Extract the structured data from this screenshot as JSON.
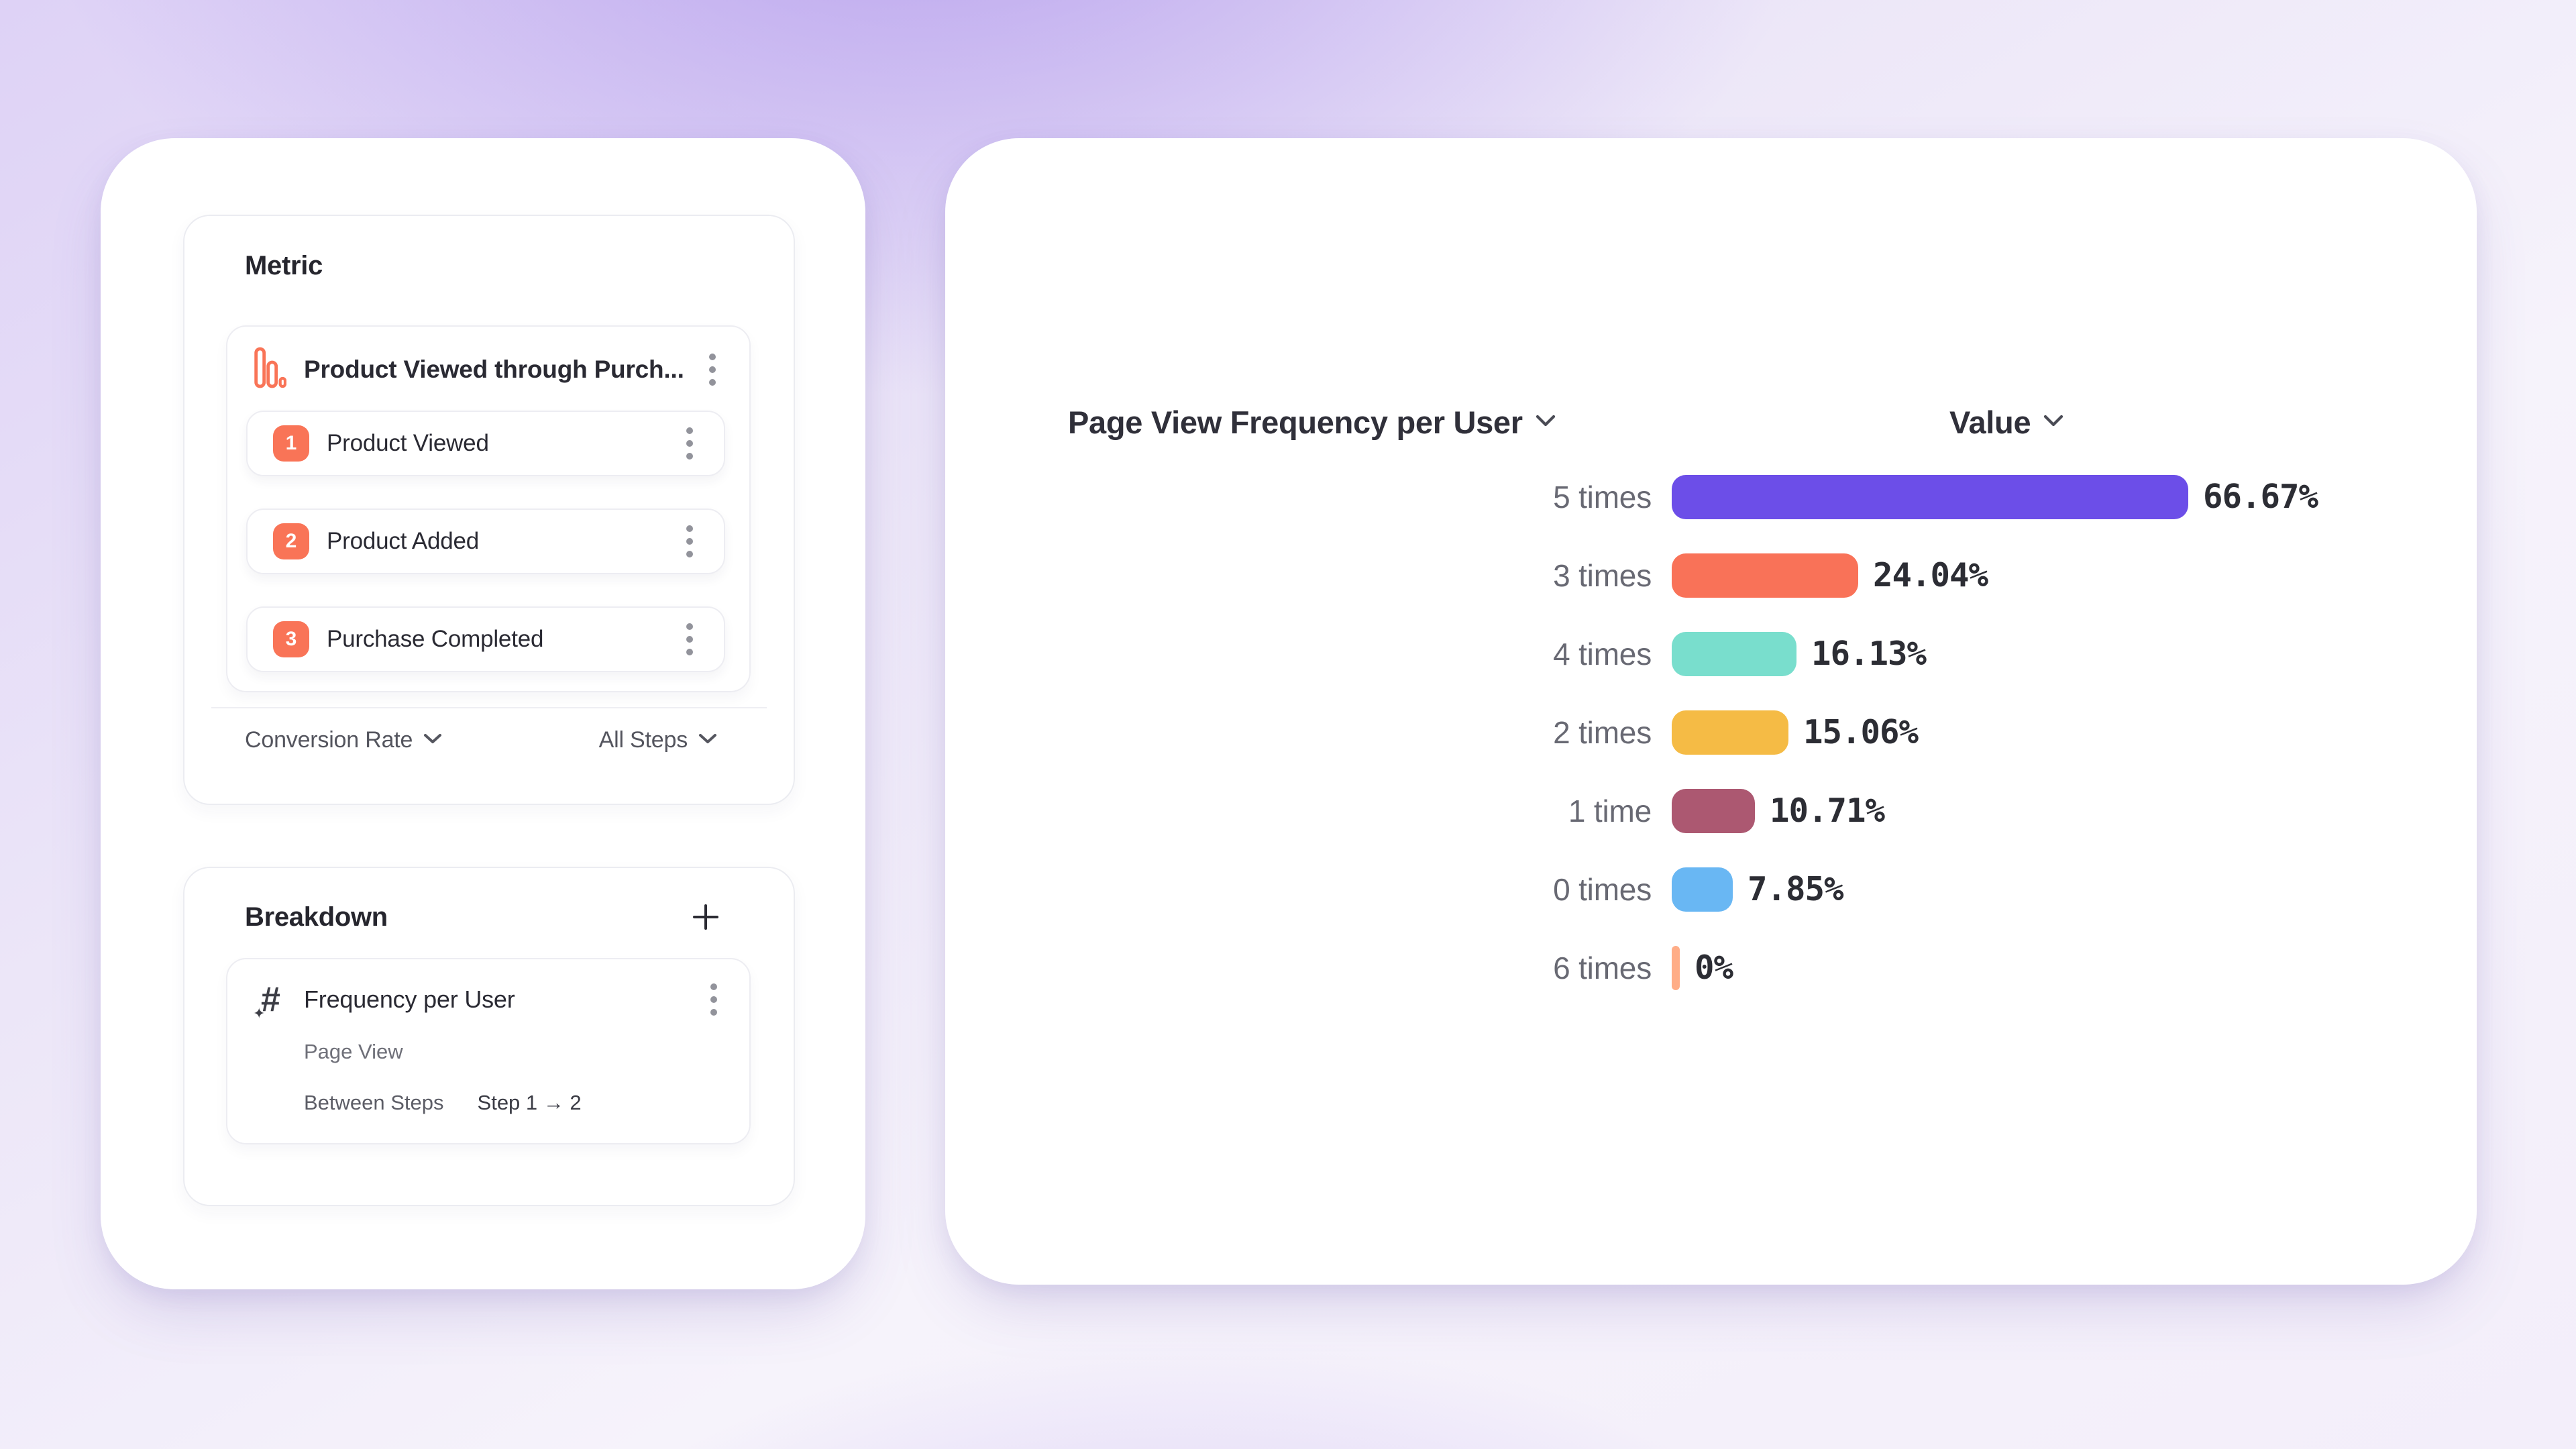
{
  "left_panel": {
    "metric_card": {
      "title": "Metric",
      "funnel": {
        "name": "Product Viewed through Purch...",
        "icon": "funnel-bars-icon",
        "icon_color": "#f97457",
        "steps": [
          {
            "number": "1",
            "label": "Product Viewed"
          },
          {
            "number": "2",
            "label": "Product Added"
          },
          {
            "number": "3",
            "label": "Purchase Completed"
          }
        ],
        "badge_color": "#f97457"
      },
      "footer": {
        "measure_dropdown": "Conversion Rate",
        "steps_dropdown": "All Steps"
      }
    },
    "breakdown_card": {
      "title": "Breakdown",
      "add_button": "plus-icon",
      "item": {
        "icon": "hash-property-icon",
        "name": "Frequency per User",
        "event": "Page View",
        "scope_label": "Between Steps",
        "scope_value": "Step 1 → 2"
      }
    }
  },
  "chart_panel": {
    "series_header": "Page View Frequency per User",
    "value_header": "Value"
  },
  "chart_data": {
    "type": "bar",
    "orientation": "horizontal",
    "title": "Page View Frequency per User",
    "value_axis_label": "Value",
    "categories": [
      "5 times",
      "3 times",
      "4 times",
      "2 times",
      "1 time",
      "0 times",
      "6 times"
    ],
    "values": [
      66.67,
      24.04,
      16.13,
      15.06,
      10.71,
      7.85,
      0
    ],
    "value_labels": [
      "66.67%",
      "24.04%",
      "16.13%",
      "15.06%",
      "10.71%",
      "7.85%",
      "0%"
    ],
    "bar_colors": [
      "#6c4ee8",
      "#f97258",
      "#79decd",
      "#f5bb45",
      "#ac5871",
      "#69b7f3",
      "#ffad87"
    ],
    "xlim": [
      0,
      100
    ],
    "grid": false,
    "legend": false,
    "sorted_descending": true
  }
}
